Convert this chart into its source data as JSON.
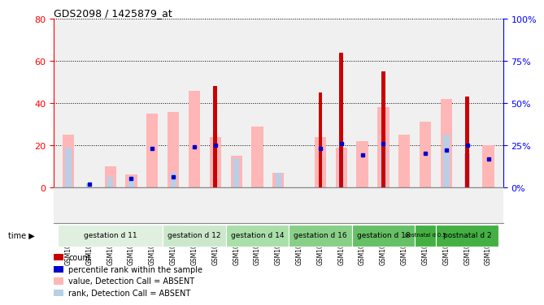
{
  "title": "GDS2098 / 1425879_at",
  "samples": [
    "GSM108562",
    "GSM108563",
    "GSM108564",
    "GSM108565",
    "GSM108566",
    "GSM108559",
    "GSM108560",
    "GSM108561",
    "GSM108556",
    "GSM108557",
    "GSM108558",
    "GSM108553",
    "GSM108554",
    "GSM108555",
    "GSM108550",
    "GSM108551",
    "GSM108552",
    "GSM108567",
    "GSM108547",
    "GSM108548",
    "GSM108549"
  ],
  "count": [
    0,
    0,
    0,
    0,
    0,
    0,
    0,
    48,
    0,
    0,
    0,
    0,
    45,
    64,
    0,
    55,
    0,
    0,
    0,
    43,
    0
  ],
  "percentile_rank": [
    0,
    2,
    0,
    5,
    23,
    6,
    24,
    25,
    0,
    0,
    0,
    0,
    23,
    26,
    19,
    26,
    0,
    20,
    22,
    25,
    17
  ],
  "value_absent": [
    25,
    0,
    10,
    6,
    35,
    36,
    46,
    24,
    15,
    29,
    7,
    0,
    24,
    19,
    22,
    38,
    25,
    31,
    42,
    0,
    20
  ],
  "rank_absent": [
    19,
    2,
    5,
    5,
    0,
    7,
    0,
    0,
    14,
    0,
    7,
    0,
    0,
    18,
    0,
    20,
    0,
    0,
    25,
    16,
    0
  ],
  "groups": [
    {
      "label": "gestation d 11",
      "start": 0,
      "end": 5,
      "color": "#e0f0e0"
    },
    {
      "label": "gestation d 12",
      "start": 5,
      "end": 8,
      "color": "#cce8cc"
    },
    {
      "label": "gestation d 14",
      "start": 8,
      "end": 11,
      "color": "#aadfaa"
    },
    {
      "label": "gestation d 16",
      "start": 11,
      "end": 14,
      "color": "#88d088"
    },
    {
      "label": "gestation d 18",
      "start": 14,
      "end": 17,
      "color": "#66c066"
    },
    {
      "label": "postnatal d 0.5",
      "start": 17,
      "end": 18,
      "color": "#44b044"
    },
    {
      "label": "postnatal d 2",
      "start": 18,
      "end": 21,
      "color": "#44b044"
    }
  ],
  "ylim_left": [
    0,
    80
  ],
  "ylim_right": [
    0,
    100
  ],
  "yticks_left": [
    0,
    20,
    40,
    60,
    80
  ],
  "yticks_right": [
    0,
    25,
    50,
    75,
    100
  ],
  "color_count": "#cc0000",
  "color_percentile": "#0000cc",
  "color_value_absent": "#ffb6b6",
  "color_rank_absent": "#b8cfe8",
  "plot_bg": "#f0f0f0"
}
